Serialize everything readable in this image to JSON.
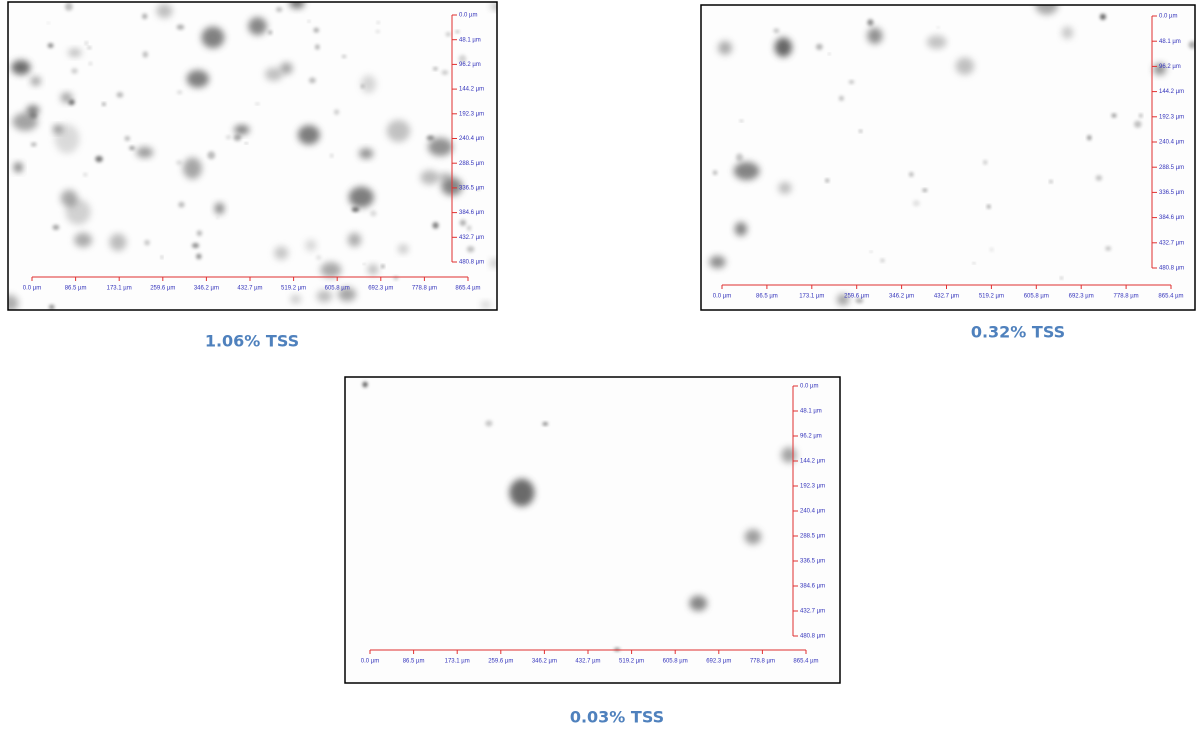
{
  "panels": [
    {
      "caption": "1.06% TSS",
      "x_scale": [
        "0.0 µm",
        "86.5 µm",
        "173.1 µm",
        "259.6 µm",
        "346.2 µm",
        "432.7 µm",
        "519.2 µm",
        "605.8 µm",
        "692.3 µm",
        "778.8 µm",
        "865.4 µm"
      ],
      "y_scale": [
        "0.0 µm",
        "48.1 µm",
        "96.2 µm",
        "144.2 µm",
        "192.3 µm",
        "240.4 µm",
        "288.5 µm",
        "336.5 µm",
        "384.6 µm",
        "432.7 µm",
        "480.8 µm"
      ]
    },
    {
      "caption": "0.32% TSS",
      "x_scale": [
        "0.0 µm",
        "86.5 µm",
        "173.1 µm",
        "259.6 µm",
        "346.2 µm",
        "432.7 µm",
        "519.2 µm",
        "605.8 µm",
        "692.3 µm",
        "778.8 µm",
        "865.4 µm"
      ],
      "y_scale": [
        "0.0 µm",
        "48.1 µm",
        "96.2 µm",
        "144.2 µm",
        "192.3 µm",
        "240.4 µm",
        "288.5 µm",
        "336.5 µm",
        "384.6 µm",
        "432.7 µm",
        "480.8 µm"
      ]
    },
    {
      "caption": "0.03% TSS",
      "x_scale": [
        "0.0 µm",
        "86.5 µm",
        "173.1 µm",
        "259.6 µm",
        "346.2 µm",
        "432.7 µm",
        "519.2 µm",
        "605.8 µm",
        "692.3 µm",
        "778.8 µm",
        "865.4 µm"
      ],
      "y_scale": [
        "0.0 µm",
        "48.1 µm",
        "96.2 µm",
        "144.2 µm",
        "192.3 µm",
        "240.4 µm",
        "288.5 µm",
        "336.5 µm",
        "384.6 µm",
        "432.7 µm",
        "480.8 µm"
      ]
    }
  ]
}
